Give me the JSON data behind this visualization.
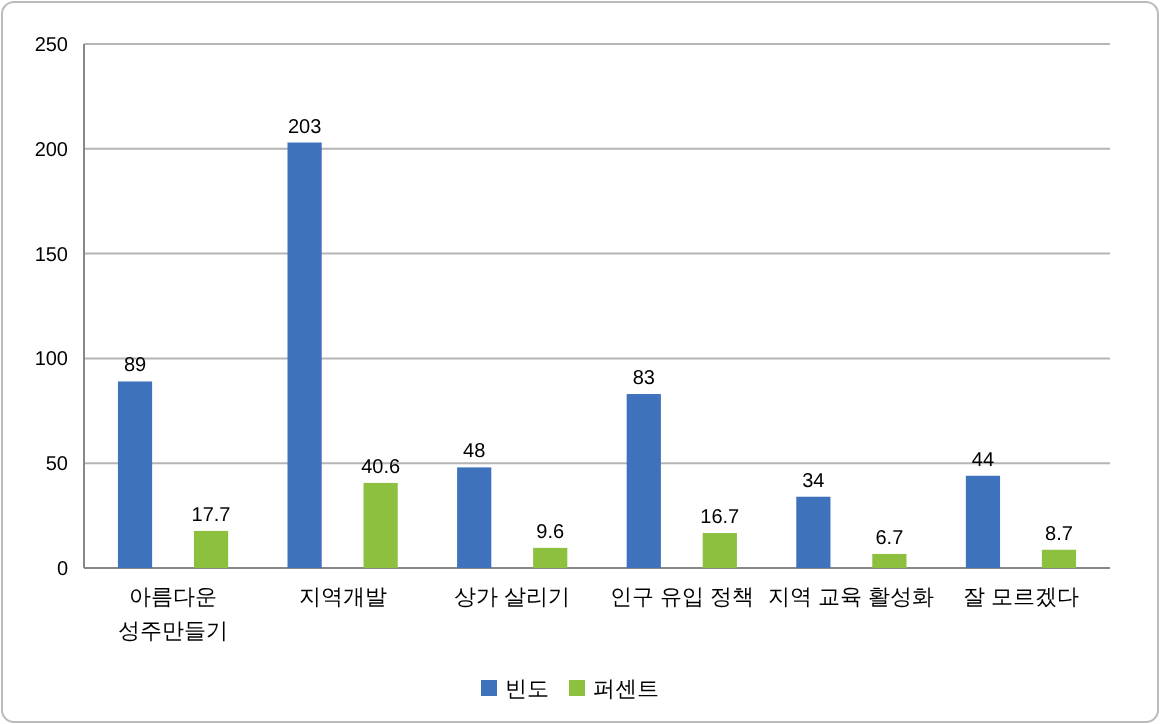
{
  "chart_data": {
    "type": "bar",
    "categories": [
      "아름다운 성주만들기",
      "지역개발",
      "상가 살리기",
      "인구 유입 정책",
      "지역 교육 활성화",
      "잘 모르겠다"
    ],
    "series": [
      {
        "name": "빈도",
        "color": "#3f72bd",
        "values": [
          89,
          203,
          48,
          83,
          34,
          44
        ]
      },
      {
        "name": "퍼센트",
        "color": "#8dc03f",
        "values": [
          17.7,
          40.6,
          9.6,
          16.7,
          6.7,
          8.7
        ]
      }
    ],
    "ylim": [
      0,
      250
    ],
    "yticks": [
      0,
      50,
      100,
      150,
      200,
      250
    ],
    "grid": "y",
    "legend": "bottom",
    "data_labels": true
  }
}
